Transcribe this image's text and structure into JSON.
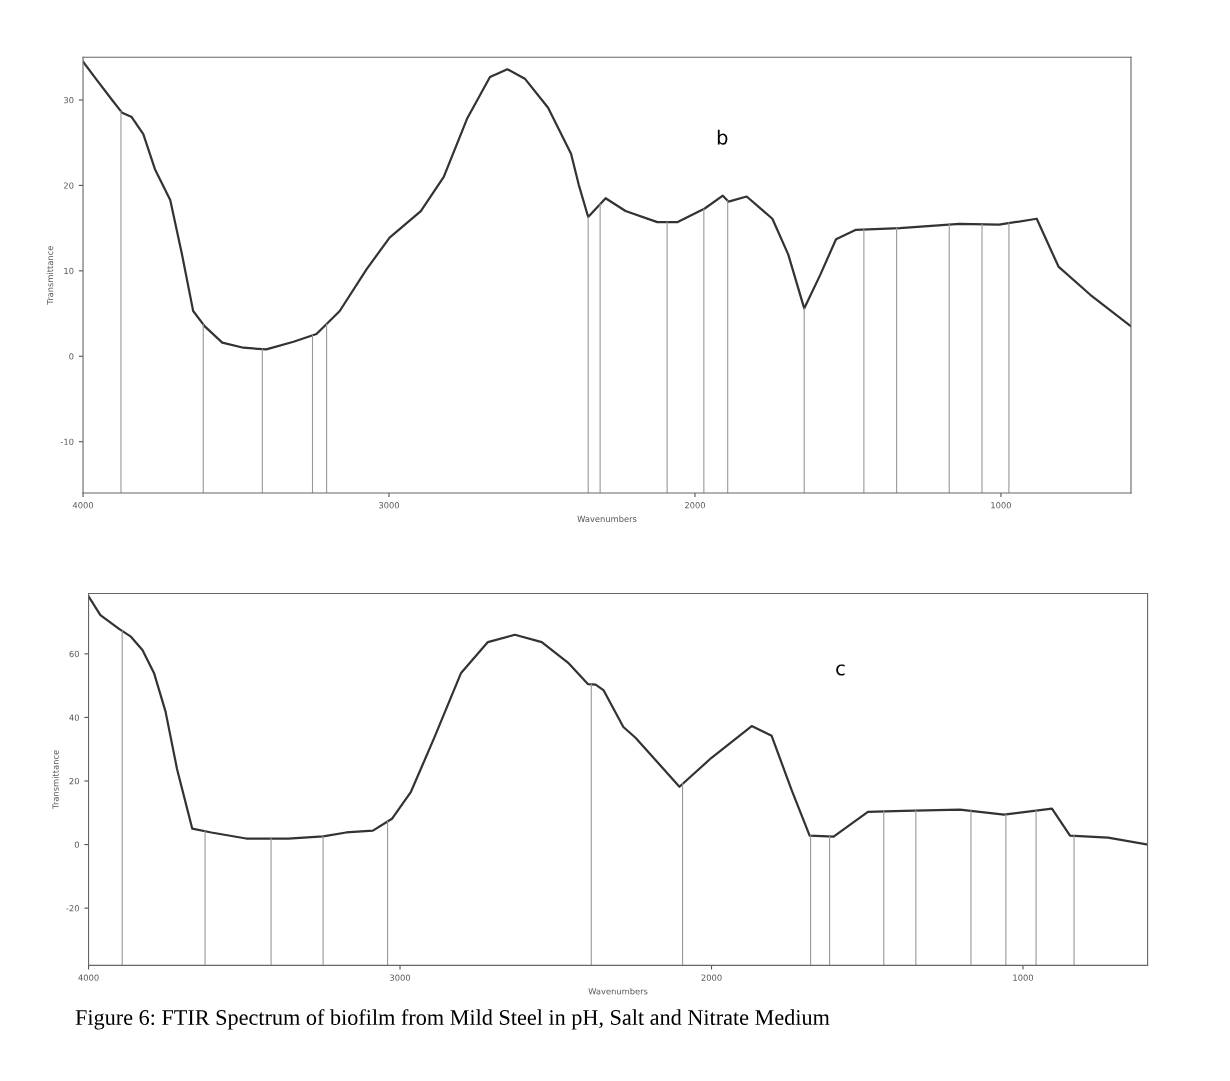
{
  "chart_data": [
    {
      "type": "line",
      "xlabel": "Wavenumbers",
      "ylabel": "Transmittance",
      "annotations": [
        "b"
      ],
      "xlim": [
        4000,
        575
      ],
      "ylim": [
        -16,
        35
      ],
      "xticks": [
        4000,
        3000,
        2000,
        1000
      ],
      "yticks": [
        30,
        20,
        10,
        0,
        -10
      ],
      "grid": false,
      "series": [
        {
          "color": "#333333",
          "x": [
            4000,
            3954,
            3905,
            3872,
            3841,
            3803,
            3765,
            3715,
            3677,
            3640,
            3602,
            3545,
            3476,
            3401,
            3312,
            3237,
            3161,
            3073,
            2998,
            2896,
            2821,
            2745,
            2670,
            2613,
            2556,
            2480,
            2405,
            2380,
            2349,
            2292,
            2227,
            2123,
            2058,
            1968,
            1909,
            1890,
            1831,
            1747,
            1695,
            1643,
            1591,
            1539,
            1474,
            1331,
            1136,
            1006,
            883,
            812,
            708,
            575
          ],
          "values": [
            34.5,
            32.3,
            30.0,
            28.5,
            28.0,
            26.0,
            21.9,
            18.3,
            12.0,
            5.3,
            3.5,
            1.6,
            1.0,
            0.8,
            1.7,
            2.6,
            5.3,
            10.2,
            13.9,
            17.0,
            21.0,
            27.8,
            32.7,
            33.6,
            32.5,
            29.1,
            23.7,
            20.1,
            16.3,
            18.5,
            17.0,
            15.7,
            15.7,
            17.3,
            18.8,
            18.1,
            18.7,
            16.1,
            11.9,
            5.6,
            9.5,
            13.7,
            14.8,
            15.0,
            15.5,
            15.4,
            16.1,
            10.5,
            7.2,
            3.5
          ]
        }
      ],
      "ref_lines": [
        {
          "axis": "x",
          "value": 3876
        },
        {
          "axis": "x",
          "value": 3607
        },
        {
          "axis": "x",
          "value": 3414
        },
        {
          "axis": "x",
          "value": 3250
        },
        {
          "axis": "x",
          "value": 3204
        },
        {
          "axis": "x",
          "value": 2349
        },
        {
          "axis": "x",
          "value": 2310
        },
        {
          "axis": "x",
          "value": 2091
        },
        {
          "axis": "x",
          "value": 1971
        },
        {
          "axis": "x",
          "value": 1893
        },
        {
          "axis": "x",
          "value": 1643
        },
        {
          "axis": "x",
          "value": 1448
        },
        {
          "axis": "x",
          "value": 1341
        },
        {
          "axis": "x",
          "value": 1169
        },
        {
          "axis": "x",
          "value": 1062
        },
        {
          "axis": "x",
          "value": 974
        }
      ]
    },
    {
      "type": "line",
      "xlabel": "Wavenumbers",
      "ylabel": "Transmittance",
      "annotations": [
        "c",
        "Figure 6: FTIR Spectrum of biofilm from Mild Steel in pH, Salt and Nitrate Medium"
      ],
      "xlim": [
        4000,
        600
      ],
      "ylim": [
        -38,
        79
      ],
      "xticks": [
        4000,
        3000,
        2000,
        1000
      ],
      "yticks": [
        60,
        40,
        20,
        0,
        -20
      ],
      "grid": false,
      "series": [
        {
          "color": "#333333",
          "x": [
            4000,
            3962,
            3901,
            3864,
            3827,
            3790,
            3753,
            3716,
            3667,
            3606,
            3494,
            3359,
            3247,
            3173,
            3087,
            3026,
            2965,
            2891,
            2804,
            2718,
            2631,
            2545,
            2458,
            2397,
            2372,
            2347,
            2283,
            2244,
            2103,
            2000,
            1871,
            1807,
            1743,
            1685,
            1608,
            1498,
            1383,
            1203,
            1061,
            907,
            849,
            727,
            600
          ],
          "values": [
            78.1,
            72.2,
            67.8,
            65.4,
            61.2,
            54.0,
            41.9,
            23.8,
            5.0,
            3.8,
            1.9,
            1.9,
            2.6,
            3.8,
            4.4,
            8.1,
            16.6,
            33.4,
            54.0,
            63.7,
            66.0,
            63.7,
            57.0,
            50.5,
            50.3,
            48.6,
            37.0,
            33.6,
            18.2,
            27.3,
            37.3,
            34.2,
            17.2,
            2.8,
            2.5,
            10.3,
            10.6,
            11.0,
            9.4,
            11.3,
            2.8,
            2.2,
            0.0
          ]
        }
      ],
      "ref_lines": [
        {
          "axis": "x",
          "value": 3892
        },
        {
          "axis": "x",
          "value": 3626
        },
        {
          "axis": "x",
          "value": 3414
        },
        {
          "axis": "x",
          "value": 3247
        },
        {
          "axis": "x",
          "value": 3040
        },
        {
          "axis": "x",
          "value": 2386
        },
        {
          "axis": "x",
          "value": 2093
        },
        {
          "axis": "x",
          "value": 1682
        },
        {
          "axis": "x",
          "value": 1621
        },
        {
          "axis": "x",
          "value": 1447
        },
        {
          "axis": "x",
          "value": 1344
        },
        {
          "axis": "x",
          "value": 1167
        },
        {
          "axis": "x",
          "value": 1055
        },
        {
          "axis": "x",
          "value": 958
        },
        {
          "axis": "x",
          "value": 836
        }
      ]
    }
  ]
}
